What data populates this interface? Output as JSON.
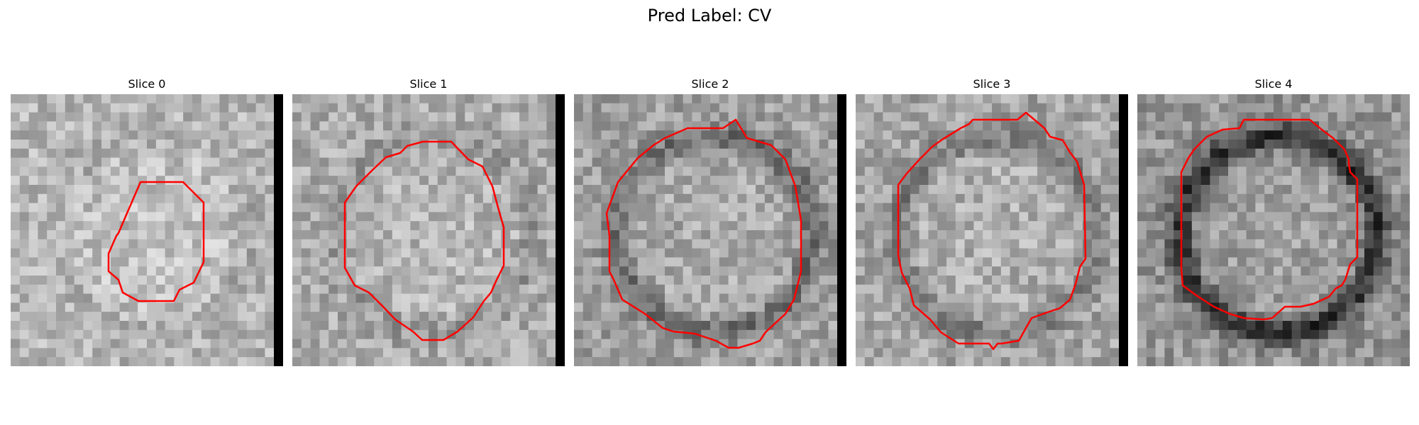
{
  "figure": {
    "title": "Pred Label: CV"
  },
  "slices": [
    {
      "label": "Slice 0",
      "seed": 11,
      "base": 182,
      "ring_strength": 0.05,
      "bar": true,
      "contour_color": "#ff0000"
    },
    {
      "label": "Slice 1",
      "seed": 23,
      "base": 172,
      "ring_strength": 0.1,
      "bar": true,
      "contour_color": "#ff0000"
    },
    {
      "label": "Slice 2",
      "seed": 37,
      "base": 160,
      "ring_strength": 0.28,
      "bar": true,
      "contour_color": "#ff0000"
    },
    {
      "label": "Slice 3",
      "seed": 41,
      "base": 165,
      "ring_strength": 0.22,
      "bar": true,
      "contour_color": "#ff0000"
    },
    {
      "label": "Slice 4",
      "seed": 59,
      "base": 150,
      "ring_strength": 0.55,
      "bar": false,
      "contour_color": "#ff0000"
    }
  ]
}
